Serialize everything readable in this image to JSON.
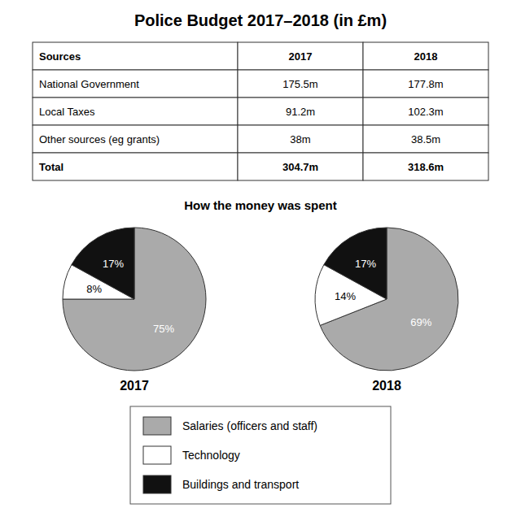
{
  "chart_data": [
    {
      "type": "table",
      "title": "Police Budget 2017–2018 (in £m)",
      "headers": [
        "Sources",
        "2017",
        "2018"
      ],
      "rows": [
        [
          "National Government",
          "175.5m",
          "177.8m"
        ],
        [
          "Local Taxes",
          "91.2m",
          "102.3m"
        ],
        [
          "Other sources (eg grants)",
          "38m",
          "38.5m"
        ],
        [
          "Total",
          "304.7m",
          "318.6m"
        ]
      ]
    },
    {
      "type": "pie",
      "subtitle": "How the money was spent",
      "title": "2017",
      "categories": [
        "Salaries (officers and staff)",
        "Technology",
        "Buildings and transport"
      ],
      "values": [
        75,
        8,
        17
      ],
      "value_labels": [
        "75%",
        "8%",
        "17%"
      ],
      "colors": [
        "#aaaaaa",
        "#ffffff",
        "#111111"
      ],
      "data_labels": true,
      "legend": "bottom"
    },
    {
      "type": "pie",
      "title": "2018",
      "categories": [
        "Salaries (officers and staff)",
        "Technology",
        "Buildings and transport"
      ],
      "values": [
        69,
        14,
        17
      ],
      "value_labels": [
        "69%",
        "14%",
        "17%"
      ],
      "colors": [
        "#aaaaaa",
        "#ffffff",
        "#111111"
      ],
      "data_labels": true
    }
  ]
}
